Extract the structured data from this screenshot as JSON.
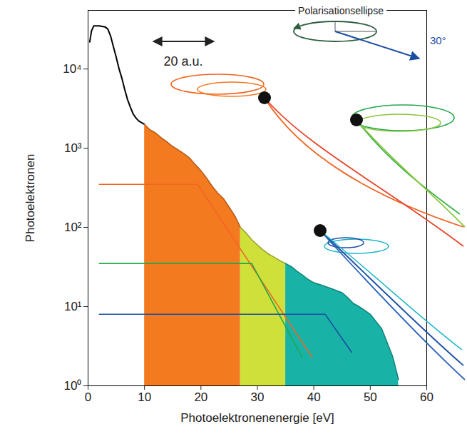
{
  "chart_data": {
    "type": "line",
    "x_label": "Photoelektronenenergie [eV]",
    "y_label": "Photoelektronen",
    "log": "y",
    "grid": false,
    "xlim": [
      0,
      60
    ],
    "xticks": [
      0,
      10,
      20,
      30,
      40,
      50,
      60
    ],
    "ylim": [
      1,
      55000
    ],
    "yticks": [
      {
        "value": 1,
        "label": "10⁰"
      },
      {
        "value": 10,
        "label": "10¹"
      },
      {
        "value": 100,
        "label": "10²"
      },
      {
        "value": 1000,
        "label": "10³"
      },
      {
        "value": 10000,
        "label": "10⁴"
      }
    ],
    "annotations": [
      "20 a.u.",
      "Polarisationsellipse",
      "30°"
    ],
    "series": [
      {
        "type": "line",
        "color": "#000000",
        "x": [
          0.3,
          0.6,
          1,
          1.5,
          2,
          2.5,
          3,
          3.5,
          4,
          4.5,
          5,
          5.5,
          6,
          6.5,
          7,
          7.5,
          8,
          8.5,
          9,
          9.5,
          10
        ],
        "values": [
          22000,
          30000,
          35000,
          35000,
          35000,
          34500,
          34000,
          32000,
          26000,
          19000,
          14000,
          10000,
          7600,
          5500,
          4100,
          3300,
          2700,
          2400,
          2200,
          2100,
          2000
        ]
      },
      {
        "type": "area",
        "color": "#f47a20",
        "x": [
          10,
          11,
          12,
          13,
          14,
          15,
          16,
          17,
          18,
          19,
          20,
          21,
          22,
          23,
          24,
          25,
          26,
          27
        ],
        "values": [
          2000,
          1700,
          1550,
          1350,
          1200,
          1050,
          950,
          850,
          750,
          620,
          520,
          420,
          330,
          270,
          230,
          180,
          140,
          100
        ]
      },
      {
        "type": "area",
        "color": "#cfe03a",
        "x": [
          27,
          28,
          29,
          30,
          31,
          32,
          33,
          34,
          35
        ],
        "values": [
          100,
          85,
          70,
          60,
          52,
          46,
          42,
          38,
          35
        ]
      },
      {
        "type": "area",
        "color": "#18b3a6",
        "x": [
          35,
          36,
          37,
          38,
          39,
          40,
          41,
          42,
          43,
          44,
          45,
          46,
          47,
          48,
          49,
          50,
          51,
          52,
          53,
          54,
          55
        ],
        "values": [
          35,
          32,
          28,
          25,
          22,
          20,
          19,
          18,
          17,
          16,
          15,
          13,
          11,
          10,
          9,
          8,
          6.5,
          5.3,
          3.5,
          2.3,
          1.2
        ]
      },
      {
        "type": "line",
        "color": "#f26522",
        "x": [
          2,
          19.4,
          39.7
        ],
        "values": [
          350,
          350,
          2.3
        ]
      },
      {
        "type": "line",
        "color": "#22a84a",
        "x": [
          2,
          29,
          37.9
        ],
        "values": [
          35,
          35,
          2.3
        ]
      },
      {
        "type": "line",
        "color": "#1c4fa3",
        "x": [
          2,
          42,
          46.7
        ],
        "values": [
          8,
          8,
          2.65
        ]
      }
    ]
  }
}
